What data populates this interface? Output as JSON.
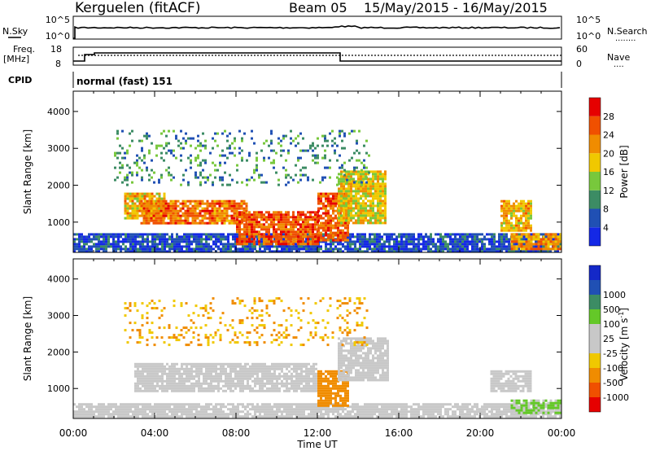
{
  "header": {
    "station": "Kerguelen (fitACF)",
    "beam": "Beam 05",
    "dates": "15/May/2015 - 16/May/2015"
  },
  "top_panels": {
    "nsky_label": "N.Sky",
    "nsearch_label": "N.Search",
    "nsearch_line": "........",
    "noise_ticks_left": [
      "10^5",
      "10^0"
    ],
    "noise_ticks_right": [
      "10^5",
      "10^0"
    ],
    "freq_label_1": "Freq.",
    "freq_label_2": "[MHz]",
    "freq_ticks": [
      "18",
      "8"
    ],
    "nave_label": "Nave",
    "nave_line": "....",
    "nave_ticks": [
      "60",
      "0"
    ],
    "cpid_label": "CPID",
    "cpid_value": "normal (fast) 151"
  },
  "colors": {
    "power": [
      "#1428e6",
      "#2050b4",
      "#3c8c64",
      "#78c83c",
      "#f0c800",
      "#f08c00",
      "#f05000",
      "#e60000"
    ],
    "velocity": [
      "#e60000",
      "#f05000",
      "#f08c00",
      "#f0c800",
      "#c8c8c8",
      "#c8c8c8",
      "#64c828",
      "#3c8c64",
      "#2050b4",
      "#1428c8"
    ]
  },
  "chart_data": [
    {
      "type": "heatmap",
      "name": "power",
      "ylabel": "Slant Range [km]",
      "yticks": [
        "1000",
        "2000",
        "3000",
        "4000"
      ],
      "ylim": [
        180,
        4550
      ],
      "xlim": [
        0,
        24
      ],
      "colorbar_label": "Power [dB]",
      "colorbar_ticks": [
        "4",
        "8",
        "12",
        "16",
        "20",
        "24",
        "28"
      ],
      "clim": [
        0,
        32
      ],
      "regions": [
        {
          "t0": 0.0,
          "t1": 24.0,
          "r0": 200,
          "r1": 700,
          "v": 5
        },
        {
          "t0": 2.5,
          "t1": 4.5,
          "r0": 1100,
          "r1": 1800,
          "v": 20
        },
        {
          "t0": 3.3,
          "t1": 8.5,
          "r0": 1000,
          "r1": 1600,
          "v": 24
        },
        {
          "t0": 8.0,
          "t1": 12.0,
          "r0": 400,
          "r1": 1300,
          "v": 26
        },
        {
          "t0": 12.0,
          "t1": 13.5,
          "r0": 500,
          "r1": 1800,
          "v": 25
        },
        {
          "t0": 13.0,
          "t1": 15.3,
          "r0": 1000,
          "r1": 2400,
          "v": 18
        },
        {
          "t0": 21.0,
          "t1": 22.5,
          "r0": 800,
          "r1": 1600,
          "v": 20
        },
        {
          "t0": 21.5,
          "t1": 24.0,
          "r0": 300,
          "r1": 700,
          "v": 22
        },
        {
          "t0": 2.0,
          "t1": 14.5,
          "r0": 2000,
          "r1": 3500,
          "v": 10
        }
      ]
    },
    {
      "type": "heatmap",
      "name": "velocity",
      "ylabel": "Slant Range [km]",
      "yticks": [
        "1000",
        "2000",
        "3000",
        "4000"
      ],
      "ylim": [
        180,
        4550
      ],
      "xlim": [
        0,
        24
      ],
      "xticks": [
        "00:00",
        "04:00",
        "08:00",
        "12:00",
        "16:00",
        "20:00",
        "00:00"
      ],
      "xlabel": "Time UT",
      "colorbar_label": "Velocity [m s",
      "colorbar_label_sup": "-1",
      "colorbar_label_end": "]",
      "colorbar_ticks": [
        "-1000",
        "-500",
        "-100",
        "-25",
        "25",
        "100",
        "500",
        "1000"
      ],
      "clim": [
        -1200,
        1200
      ],
      "regions": [
        {
          "t0": 0.0,
          "t1": 24.0,
          "r0": 200,
          "r1": 600,
          "v": 30
        },
        {
          "t0": 3.0,
          "t1": 12.0,
          "r0": 900,
          "r1": 1700,
          "v": 0
        },
        {
          "t0": 12.0,
          "t1": 13.5,
          "r0": 500,
          "r1": 1500,
          "v": -300
        },
        {
          "t0": 13.0,
          "t1": 15.5,
          "r0": 1200,
          "r1": 2400,
          "v": 0
        },
        {
          "t0": 20.5,
          "t1": 22.5,
          "r0": 900,
          "r1": 1500,
          "v": 0
        },
        {
          "t0": 21.5,
          "t1": 24.0,
          "r0": 300,
          "r1": 700,
          "v": 110
        },
        {
          "t0": 2.5,
          "t1": 14.5,
          "r0": 2200,
          "r1": 3500,
          "v": -100
        }
      ]
    }
  ]
}
